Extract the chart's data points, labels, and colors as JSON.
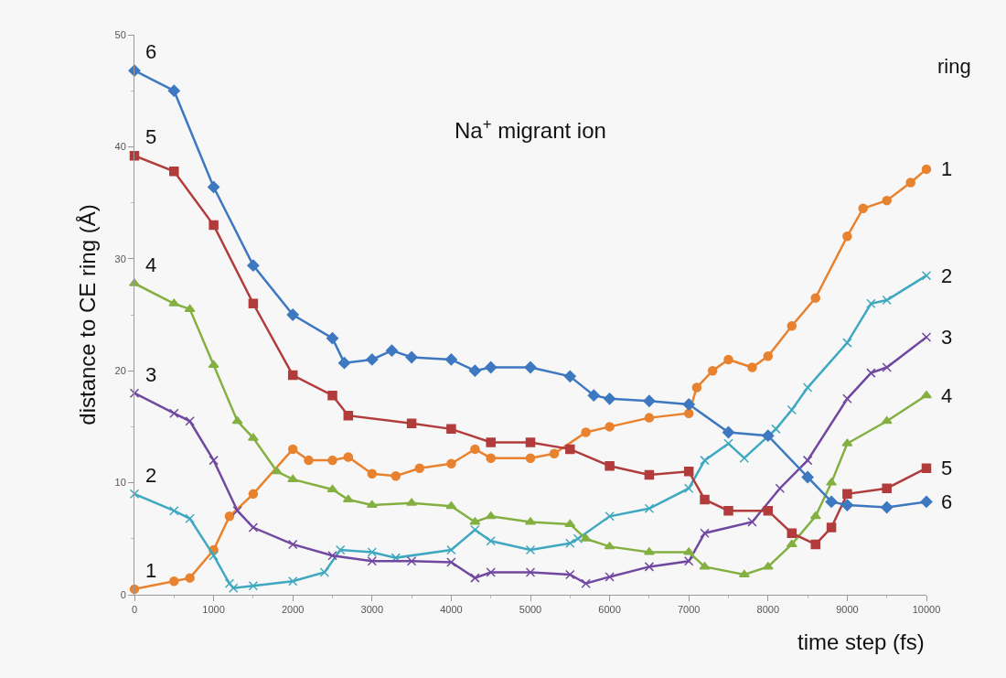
{
  "chart_data": {
    "type": "line",
    "title": "Na$^{+}$ migrant ion",
    "xlabel": "time step (fs)",
    "ylabel": "distance to CE ring (Å)",
    "annotations": [
      "ring"
    ],
    "xlim": [
      0,
      10000
    ],
    "xticks": [
      0,
      1000,
      2000,
      3000,
      4000,
      5000,
      6000,
      7000,
      8000,
      9000,
      10000
    ],
    "ylim": [
      0,
      50
    ],
    "yticks": [
      0,
      10,
      20,
      30,
      40,
      50
    ],
    "grid": false,
    "legend": false,
    "line_style": "solid",
    "series": [
      {
        "name": "1",
        "color": "#e8822e",
        "marker": "circle",
        "x": [
          0,
          500,
          700,
          1000,
          1200,
          1500,
          2000,
          2200,
          2500,
          2700,
          3000,
          3300,
          3600,
          4000,
          4300,
          4500,
          5000,
          5300,
          5700,
          6000,
          6500,
          7000,
          7100,
          7300,
          7500,
          7800,
          8000,
          8300,
          8600,
          9000,
          9200,
          9500,
          9800,
          10000
        ],
        "values": [
          0.5,
          1.2,
          1.5,
          4,
          7,
          9,
          13,
          12,
          12,
          12.3,
          10.8,
          10.6,
          11.3,
          11.7,
          13,
          12.2,
          12.2,
          12.6,
          14.5,
          15,
          15.8,
          16.2,
          18.5,
          20,
          21,
          20.3,
          21.3,
          24,
          26.5,
          32,
          34.5,
          35.2,
          36.8,
          38
        ]
      },
      {
        "name": "2",
        "color": "#3fa8c0",
        "marker": "cross",
        "x": [
          0,
          500,
          700,
          1000,
          1200,
          1250,
          1500,
          2000,
          2400,
          2600,
          3000,
          3300,
          4000,
          4300,
          4500,
          5000,
          5500,
          5600,
          6000,
          6500,
          7000,
          7200,
          7500,
          7700,
          8100,
          8300,
          8500,
          9000,
          9300,
          9500,
          10000
        ],
        "values": [
          9,
          7.5,
          6.8,
          3.5,
          1,
          0.6,
          0.8,
          1.2,
          2,
          4,
          3.8,
          3.3,
          4,
          5.8,
          4.8,
          4,
          4.6,
          5,
          7,
          7.7,
          9.5,
          12,
          13.5,
          12.2,
          14.8,
          16.5,
          18.5,
          22.5,
          26,
          26.3,
          28.5
        ]
      },
      {
        "name": "3",
        "color": "#7048a0",
        "marker": "cross",
        "x": [
          0,
          500,
          700,
          1000,
          1300,
          1500,
          2000,
          2500,
          3000,
          3500,
          4000,
          4300,
          4500,
          5000,
          5500,
          5700,
          6000,
          6500,
          7000,
          7200,
          7800,
          8150,
          8500,
          9000,
          9300,
          9500,
          10000
        ],
        "values": [
          18,
          16.2,
          15.5,
          12,
          7.5,
          6,
          4.5,
          3.5,
          3,
          3,
          2.9,
          1.5,
          2,
          2,
          1.8,
          1,
          1.6,
          2.5,
          3,
          5.5,
          6.5,
          9.5,
          12,
          17.5,
          19.8,
          20.3,
          23
        ]
      },
      {
        "name": "4",
        "color": "#84b042",
        "marker": "triangle",
        "x": [
          0,
          500,
          700,
          1000,
          1300,
          1500,
          1800,
          2000,
          2500,
          2700,
          3000,
          3500,
          4000,
          4300,
          4500,
          5000,
          5500,
          5700,
          6000,
          6500,
          7000,
          7200,
          7700,
          8000,
          8300,
          8600,
          8800,
          9000,
          9500,
          10000
        ],
        "values": [
          27.8,
          26,
          25.5,
          20.5,
          15.5,
          14,
          11,
          10.3,
          9.4,
          8.5,
          8,
          8.2,
          7.9,
          6.5,
          7,
          6.5,
          6.3,
          5,
          4.3,
          3.8,
          3.8,
          2.5,
          1.8,
          2.5,
          4.5,
          7,
          10,
          13.5,
          15.5,
          17.8
        ]
      },
      {
        "name": "5",
        "color": "#b23b3b",
        "marker": "square",
        "x": [
          0,
          500,
          1000,
          1500,
          2000,
          2500,
          2700,
          3500,
          4000,
          4500,
          5000,
          5500,
          6000,
          6500,
          7000,
          7200,
          7500,
          8000,
          8300,
          8600,
          8800,
          9000,
          9500,
          10000
        ],
        "values": [
          39.2,
          37.8,
          33,
          26,
          19.6,
          17.8,
          16,
          15.3,
          14.8,
          13.6,
          13.6,
          13,
          11.5,
          10.7,
          11,
          8.5,
          7.5,
          7.5,
          5.5,
          4.5,
          6,
          9,
          9.5,
          11.3
        ]
      },
      {
        "name": "6",
        "color": "#3d78c0",
        "marker": "diamond",
        "x": [
          0,
          500,
          1000,
          1500,
          2000,
          2500,
          2650,
          3000,
          3250,
          3500,
          4000,
          4300,
          4500,
          5000,
          5500,
          5800,
          6000,
          6500,
          7000,
          7500,
          8000,
          8500,
          8800,
          9000,
          9500,
          10000
        ],
        "values": [
          46.8,
          45,
          36.4,
          29.4,
          25,
          22.9,
          20.7,
          21,
          21.8,
          21.2,
          21,
          20,
          20.3,
          20.3,
          19.5,
          17.8,
          17.5,
          17.3,
          17,
          14.5,
          14.2,
          10.5,
          8.3,
          8,
          7.8,
          8.3
        ]
      }
    ]
  }
}
